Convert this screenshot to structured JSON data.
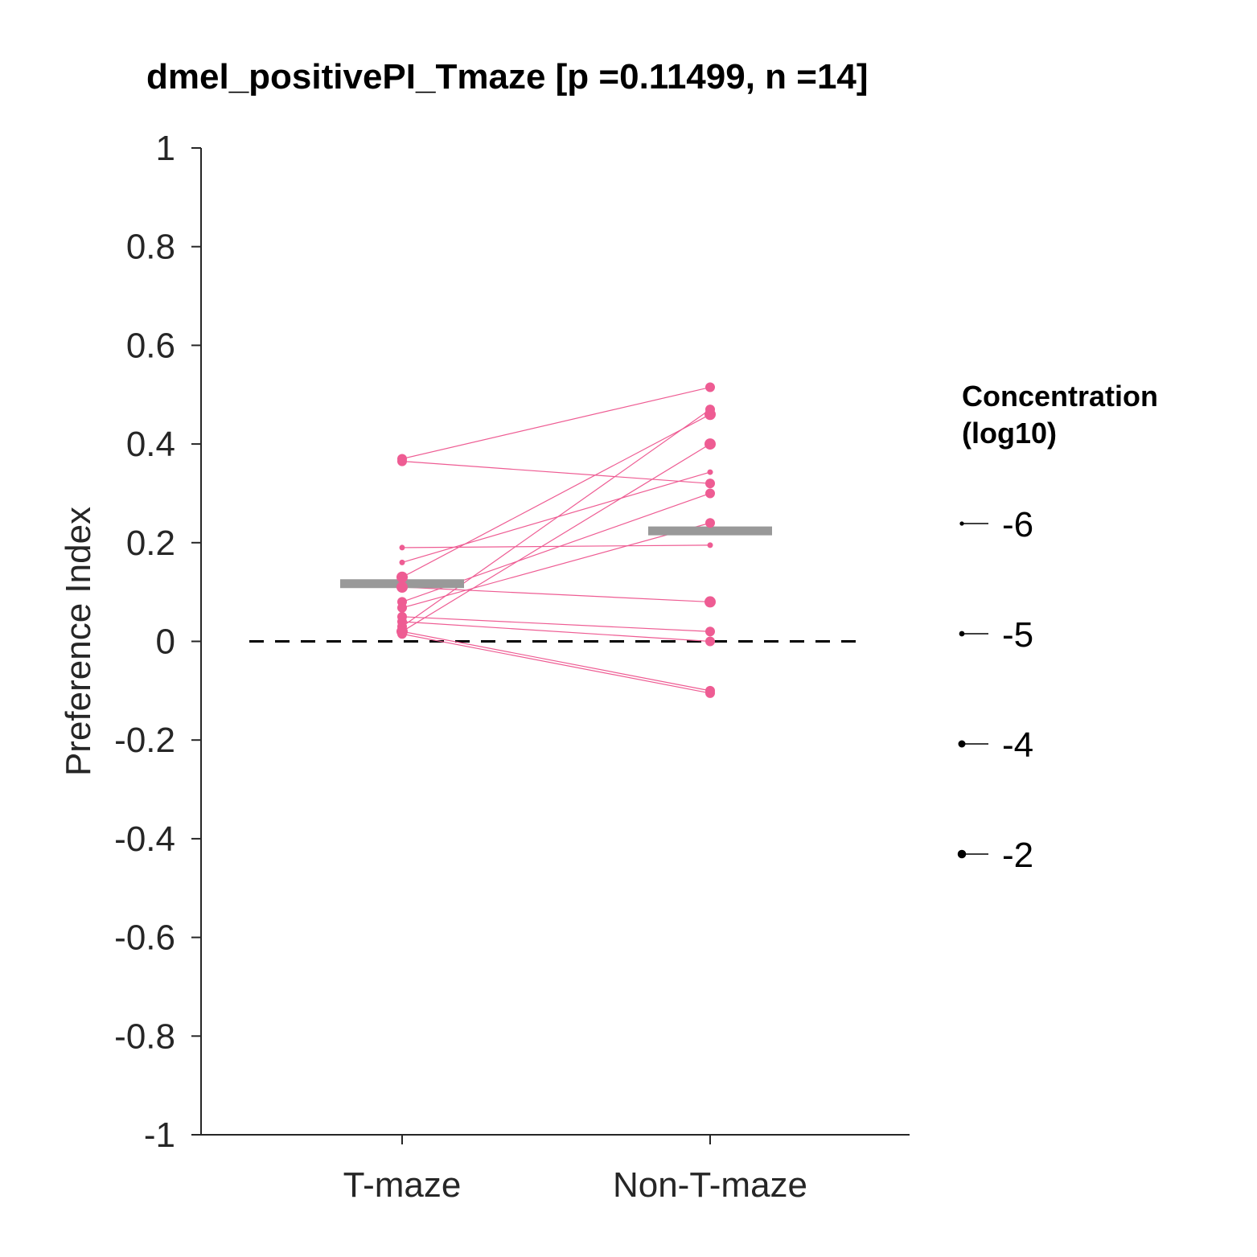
{
  "chart_data": {
    "type": "scatter",
    "title": "dmel_positivePI_Tmaze [p =0.11499, n =14]",
    "ylabel": "Preference Index",
    "xlabel": "",
    "categories": [
      "T-maze",
      "Non-T-maze"
    ],
    "ylim": [
      -1,
      1
    ],
    "yticks": [
      1,
      0.8,
      0.6,
      0.4,
      0.2,
      0,
      -0.2,
      -0.4,
      -0.6,
      -0.8,
      -1
    ],
    "ytick_labels": [
      "1",
      "0.8",
      "0.6",
      "0.4",
      "0.2",
      "0",
      "-0.2",
      "-0.4",
      "-0.6",
      "-0.8",
      "-1"
    ],
    "reference_line": {
      "y": 0,
      "style": "dashed",
      "color": "#000000"
    },
    "marker_color": "#EE5C93",
    "mean_color": "#999999",
    "means": [
      0.117,
      0.224
    ],
    "pairs": [
      {
        "t_maze": 0.37,
        "non_t_maze": 0.515,
        "concentration": -4
      },
      {
        "t_maze": 0.365,
        "non_t_maze": 0.32,
        "concentration": -4
      },
      {
        "t_maze": 0.19,
        "non_t_maze": 0.195,
        "concentration": -6
      },
      {
        "t_maze": 0.16,
        "non_t_maze": 0.343,
        "concentration": -6
      },
      {
        "t_maze": 0.13,
        "non_t_maze": 0.46,
        "concentration": -2
      },
      {
        "t_maze": 0.11,
        "non_t_maze": 0.08,
        "concentration": -2
      },
      {
        "t_maze": 0.08,
        "non_t_maze": 0.3,
        "concentration": -4
      },
      {
        "t_maze": 0.068,
        "non_t_maze": 0.24,
        "concentration": -4
      },
      {
        "t_maze": 0.05,
        "non_t_maze": 0.02,
        "concentration": -4
      },
      {
        "t_maze": 0.04,
        "non_t_maze": 0.0,
        "concentration": -4
      },
      {
        "t_maze": 0.03,
        "non_t_maze": 0.47,
        "concentration": -4
      },
      {
        "t_maze": 0.02,
        "non_t_maze": 0.4,
        "concentration": -2
      },
      {
        "t_maze": 0.02,
        "non_t_maze": -0.1,
        "concentration": -4
      },
      {
        "t_maze": 0.015,
        "non_t_maze": -0.105,
        "concentration": -4
      }
    ],
    "legend": {
      "title_lines": [
        "Concentration",
        "(log10)"
      ],
      "entries": [
        {
          "label": "-6",
          "concentration": -6
        },
        {
          "label": "-5",
          "concentration": -5
        },
        {
          "label": "-4",
          "concentration": -4
        },
        {
          "label": "-2",
          "concentration": -2
        }
      ],
      "placement": "right",
      "marker_color": "#000000"
    }
  }
}
